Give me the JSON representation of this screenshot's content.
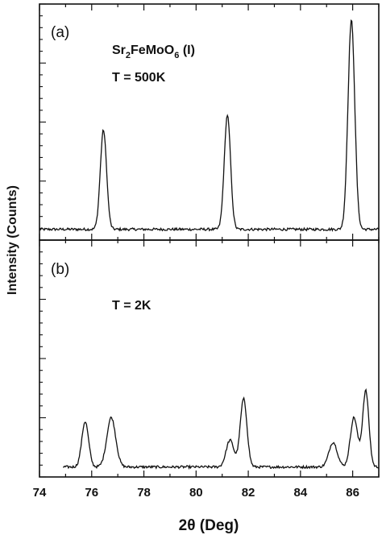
{
  "chart_data": {
    "type": "line",
    "xlabel": "2θ (Deg)",
    "ylabel": "Intensity (Counts)",
    "xlim": [
      74,
      87
    ],
    "x_ticks": [
      "74",
      "76",
      "78",
      "80",
      "82",
      "84",
      "86"
    ],
    "grid": false,
    "panels": [
      {
        "label": "(a)",
        "annotation": {
          "base": "Sr",
          "sub1": "2",
          "mid": "FeMoO",
          "sub2": "6",
          "tail": " (I)"
        },
        "temperature": "T = 500K",
        "peaks": [
          {
            "center": 76.45,
            "height": 0.46,
            "width": 0.12
          },
          {
            "center": 81.2,
            "height": 0.53,
            "width": 0.12
          },
          {
            "center": 85.95,
            "height": 0.97,
            "width": 0.13
          }
        ],
        "baseline": 0.02
      },
      {
        "label": "(b)",
        "temperature": "T = 2K",
        "peaks": [
          {
            "center": 75.75,
            "height": 0.22,
            "width": 0.13
          },
          {
            "center": 76.75,
            "height": 0.24,
            "width": 0.17
          },
          {
            "center": 81.3,
            "height": 0.13,
            "width": 0.15
          },
          {
            "center": 81.82,
            "height": 0.33,
            "width": 0.13
          },
          {
            "center": 85.25,
            "height": 0.12,
            "width": 0.16
          },
          {
            "center": 86.05,
            "height": 0.24,
            "width": 0.14
          },
          {
            "center": 86.5,
            "height": 0.37,
            "width": 0.12
          }
        ],
        "baseline": 0.025
      }
    ]
  }
}
